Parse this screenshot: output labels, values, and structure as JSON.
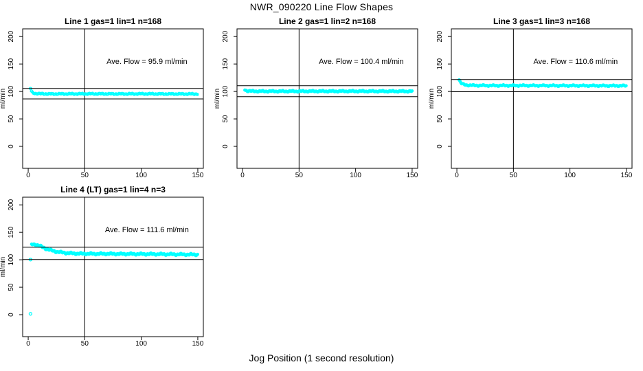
{
  "page": {
    "title": "NWR_090220  Line Flow Shapes",
    "xlabel": "Jog Position (1 second resolution)",
    "background": "#ffffff",
    "marker_color": "#00FFFF",
    "axis_color": "#000000"
  },
  "chart_data": [
    {
      "type": "scatter",
      "title": "Line 1 gas=1 lin=1 n=168",
      "annotation": "Ave. Flow =  95.9  ml/min",
      "annotation_pos": {
        "x": 105,
        "y": 150
      },
      "ave_flow_ml_min": 95.9,
      "n": 168,
      "ylabel": "ml/min",
      "x_ticks": [
        0,
        50,
        100,
        150
      ],
      "y_ticks": [
        0,
        50,
        100,
        150,
        200
      ],
      "xlim": [
        -4.9,
        154.9
      ],
      "ylim": [
        -40,
        214
      ],
      "ref_vline": 50,
      "ref_hlines": [
        105.5,
        86.3
      ],
      "keypoints": [
        [
          2,
          105.5
        ],
        [
          3,
          99.8
        ],
        [
          4,
          97.6
        ],
        [
          6,
          96.4
        ],
        [
          10,
          95.8
        ],
        [
          20,
          95.5
        ],
        [
          40,
          95.6
        ],
        [
          60,
          95.7
        ],
        [
          80,
          95.5
        ],
        [
          100,
          95.7
        ],
        [
          120,
          95.5
        ],
        [
          150,
          95.4
        ]
      ],
      "outliers": [],
      "scatter_band": 1.2,
      "point_step": 0.9
    },
    {
      "type": "scatter",
      "title": "Line 2 gas=1 lin=2 n=168",
      "annotation": "Ave. Flow =  100.4  ml/min",
      "annotation_pos": {
        "x": 105,
        "y": 150
      },
      "ave_flow_ml_min": 100.4,
      "n": 168,
      "ylabel": "ml/min",
      "x_ticks": [
        0,
        50,
        100,
        150
      ],
      "y_ticks": [
        0,
        50,
        100,
        150,
        200
      ],
      "xlim": [
        -4.9,
        154.9
      ],
      "ylim": [
        -40,
        214
      ],
      "ref_vline": 50,
      "ref_hlines": [
        110.4,
        90.4
      ],
      "keypoints": [
        [
          2,
          103.5
        ],
        [
          3,
          101.8
        ],
        [
          5,
          100.8
        ],
        [
          8,
          100.5
        ],
        [
          15,
          100.3
        ],
        [
          40,
          100.3
        ],
        [
          70,
          100.4
        ],
        [
          100,
          100.4
        ],
        [
          130,
          100.3
        ],
        [
          150,
          100.3
        ]
      ],
      "outliers": [],
      "scatter_band": 1.6,
      "point_step": 0.5
    },
    {
      "type": "scatter",
      "title": "Line 3 gas=1 lin=3 n=168",
      "annotation": "Ave. Flow =  110.6  ml/min",
      "annotation_pos": {
        "x": 105,
        "y": 150
      },
      "ave_flow_ml_min": 110.6,
      "n": 168,
      "ylabel": "ml/min",
      "x_ticks": [
        0,
        50,
        100,
        150
      ],
      "y_ticks": [
        0,
        50,
        100,
        150,
        200
      ],
      "xlim": [
        -4.9,
        154.9
      ],
      "ylim": [
        -40,
        214
      ],
      "ref_vline": 50,
      "ref_hlines": [
        121.7,
        99.5
      ],
      "keypoints": [
        [
          2,
          121.5
        ],
        [
          3,
          117
        ],
        [
          4,
          114.5
        ],
        [
          6,
          112.5
        ],
        [
          9,
          111.5
        ],
        [
          15,
          111
        ],
        [
          30,
          110.7
        ],
        [
          60,
          110.8
        ],
        [
          90,
          110.6
        ],
        [
          120,
          110.5
        ],
        [
          150,
          110.3
        ]
      ],
      "outliers": [],
      "scatter_band": 1.4,
      "point_step": 0.7
    },
    {
      "type": "scatter",
      "title": "Line 4 (LT) gas=1 lin=4 n=3",
      "annotation": "Ave. Flow =  111.6  ml/min",
      "annotation_pos": {
        "x": 105,
        "y": 150
      },
      "ave_flow_ml_min": 111.6,
      "n": 3,
      "ylabel": "ml/min",
      "x_ticks": [
        0,
        50,
        100,
        150
      ],
      "y_ticks": [
        0,
        50,
        100,
        150,
        200
      ],
      "xlim": [
        -4.9,
        154.9
      ],
      "ylim": [
        -40,
        214
      ],
      "ref_vline": 50,
      "ref_hlines": [
        122.8,
        100.4
      ],
      "keypoints": [
        [
          3,
          127.5
        ],
        [
          4,
          128
        ],
        [
          6,
          127.8
        ],
        [
          8,
          127
        ],
        [
          10,
          125.5
        ],
        [
          13,
          122.5
        ],
        [
          16,
          120
        ],
        [
          20,
          117.3
        ],
        [
          25,
          114.8
        ],
        [
          30,
          113.2
        ],
        [
          35,
          112.2
        ],
        [
          40,
          111.6
        ],
        [
          45,
          111.2
        ],
        [
          50,
          111
        ],
        [
          60,
          110.8
        ],
        [
          70,
          110.9
        ],
        [
          80,
          110.6
        ],
        [
          90,
          110.6
        ],
        [
          100,
          110.4
        ],
        [
          110,
          110.3
        ],
        [
          120,
          110.1
        ],
        [
          130,
          109.9
        ],
        [
          140,
          109.6
        ],
        [
          150,
          109.4
        ]
      ],
      "outliers": [
        [
          2,
          100.4
        ],
        [
          2,
          1.5
        ]
      ],
      "scatter_band": 1.9,
      "point_step": 0.4
    }
  ]
}
